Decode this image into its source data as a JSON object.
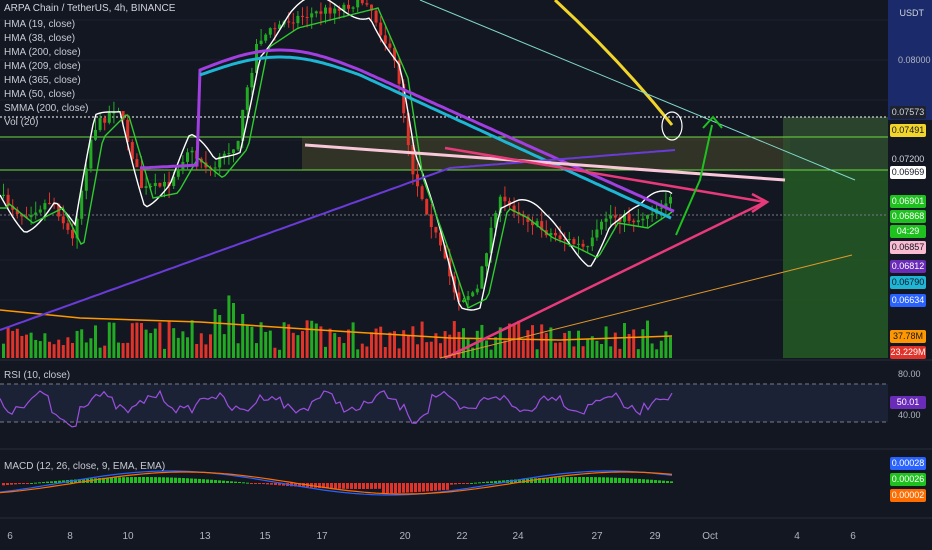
{
  "header": {
    "symbol_title": "ARPA Chain / TetherUS, 4h, BINANCE",
    "currency": "USDT"
  },
  "main_legend": [
    "HMA (19, close)",
    "HMA (38, close)",
    "HMA (200, close)",
    "HMA (209, close)",
    "HMA (365, close)",
    "HMA (50, close)",
    "SMMA (200, close)",
    "Vol (20)"
  ],
  "rsi_legend": "RSI (10, close)",
  "macd_legend": "MACD (12, 26, close, 9, EMA, EMA)",
  "colors": {
    "background": "#131722",
    "up": "#26a69a",
    "down": "#ef5350",
    "candle_up": "#22ab22",
    "candle_down": "#e0342b",
    "accent_green": "#1fc11f",
    "pink": "#e83a7b",
    "yellow": "#f2d52a"
  },
  "chart_data": [
    {
      "type": "candlestick",
      "title": "ARPA Chain / TetherUS, 4h, BINANCE",
      "x_ticks": [
        "6",
        "8",
        "10",
        "13",
        "15",
        "17",
        "20",
        "22",
        "24",
        "27",
        "29",
        "Oct",
        "4",
        "6"
      ],
      "y_axis_labels": [
        "0.08000"
      ],
      "ylim": [
        0.0635,
        0.0845
      ],
      "price_tags": [
        {
          "value": "0.07573",
          "color": "#1e222d",
          "text_color": "#d1d4dc"
        },
        {
          "value": "0.07491",
          "color": "#f2d52a",
          "text_color": "#131722"
        },
        {
          "value": "0.07200",
          "color": "#131722",
          "text_color": "#d1d4dc"
        },
        {
          "value": "0.06969",
          "color": "#ffffff",
          "text_color": "#131722"
        },
        {
          "value": "0.06901",
          "color": "#1fc11f",
          "text_color": "#ffffff"
        },
        {
          "value": "0.06868",
          "color": "#1fc11f",
          "text_color": "#ffffff"
        },
        {
          "value": "04:29",
          "color": "#1fc11f",
          "text_color": "#ffffff"
        },
        {
          "value": "0.06857",
          "color": "#f8bbd0",
          "text_color": "#131722"
        },
        {
          "value": "0.06812",
          "color": "#6a2bb8",
          "text_color": "#ffffff"
        },
        {
          "value": "0.06790",
          "color": "#1fb6d6",
          "text_color": "#131722"
        },
        {
          "value": "0.06634",
          "color": "#2962ff",
          "text_color": "#ffffff"
        }
      ],
      "volume_tags": [
        {
          "value": "37.78M",
          "color": "#ff9800",
          "text_color": "#131722"
        },
        {
          "value": "23.229M",
          "color": "#e0342b",
          "text_color": "#ffffff"
        }
      ]
    },
    {
      "type": "line",
      "title": "RSI (10, close)",
      "axis_labels": [
        "80.00",
        "40.00"
      ],
      "current_value": "50.01",
      "ylim": [
        20,
        90
      ]
    },
    {
      "type": "bar",
      "title": "MACD (12, 26, close, 9, EMA, EMA)",
      "value_tags": [
        {
          "value": "0.00028",
          "color": "#2962ff",
          "text_color": "#ffffff"
        },
        {
          "value": "0.00026",
          "color": "#1fc11f",
          "text_color": "#ffffff"
        },
        {
          "value": "0.00002",
          "color": "#ff6d00",
          "text_color": "#ffffff"
        }
      ]
    }
  ]
}
